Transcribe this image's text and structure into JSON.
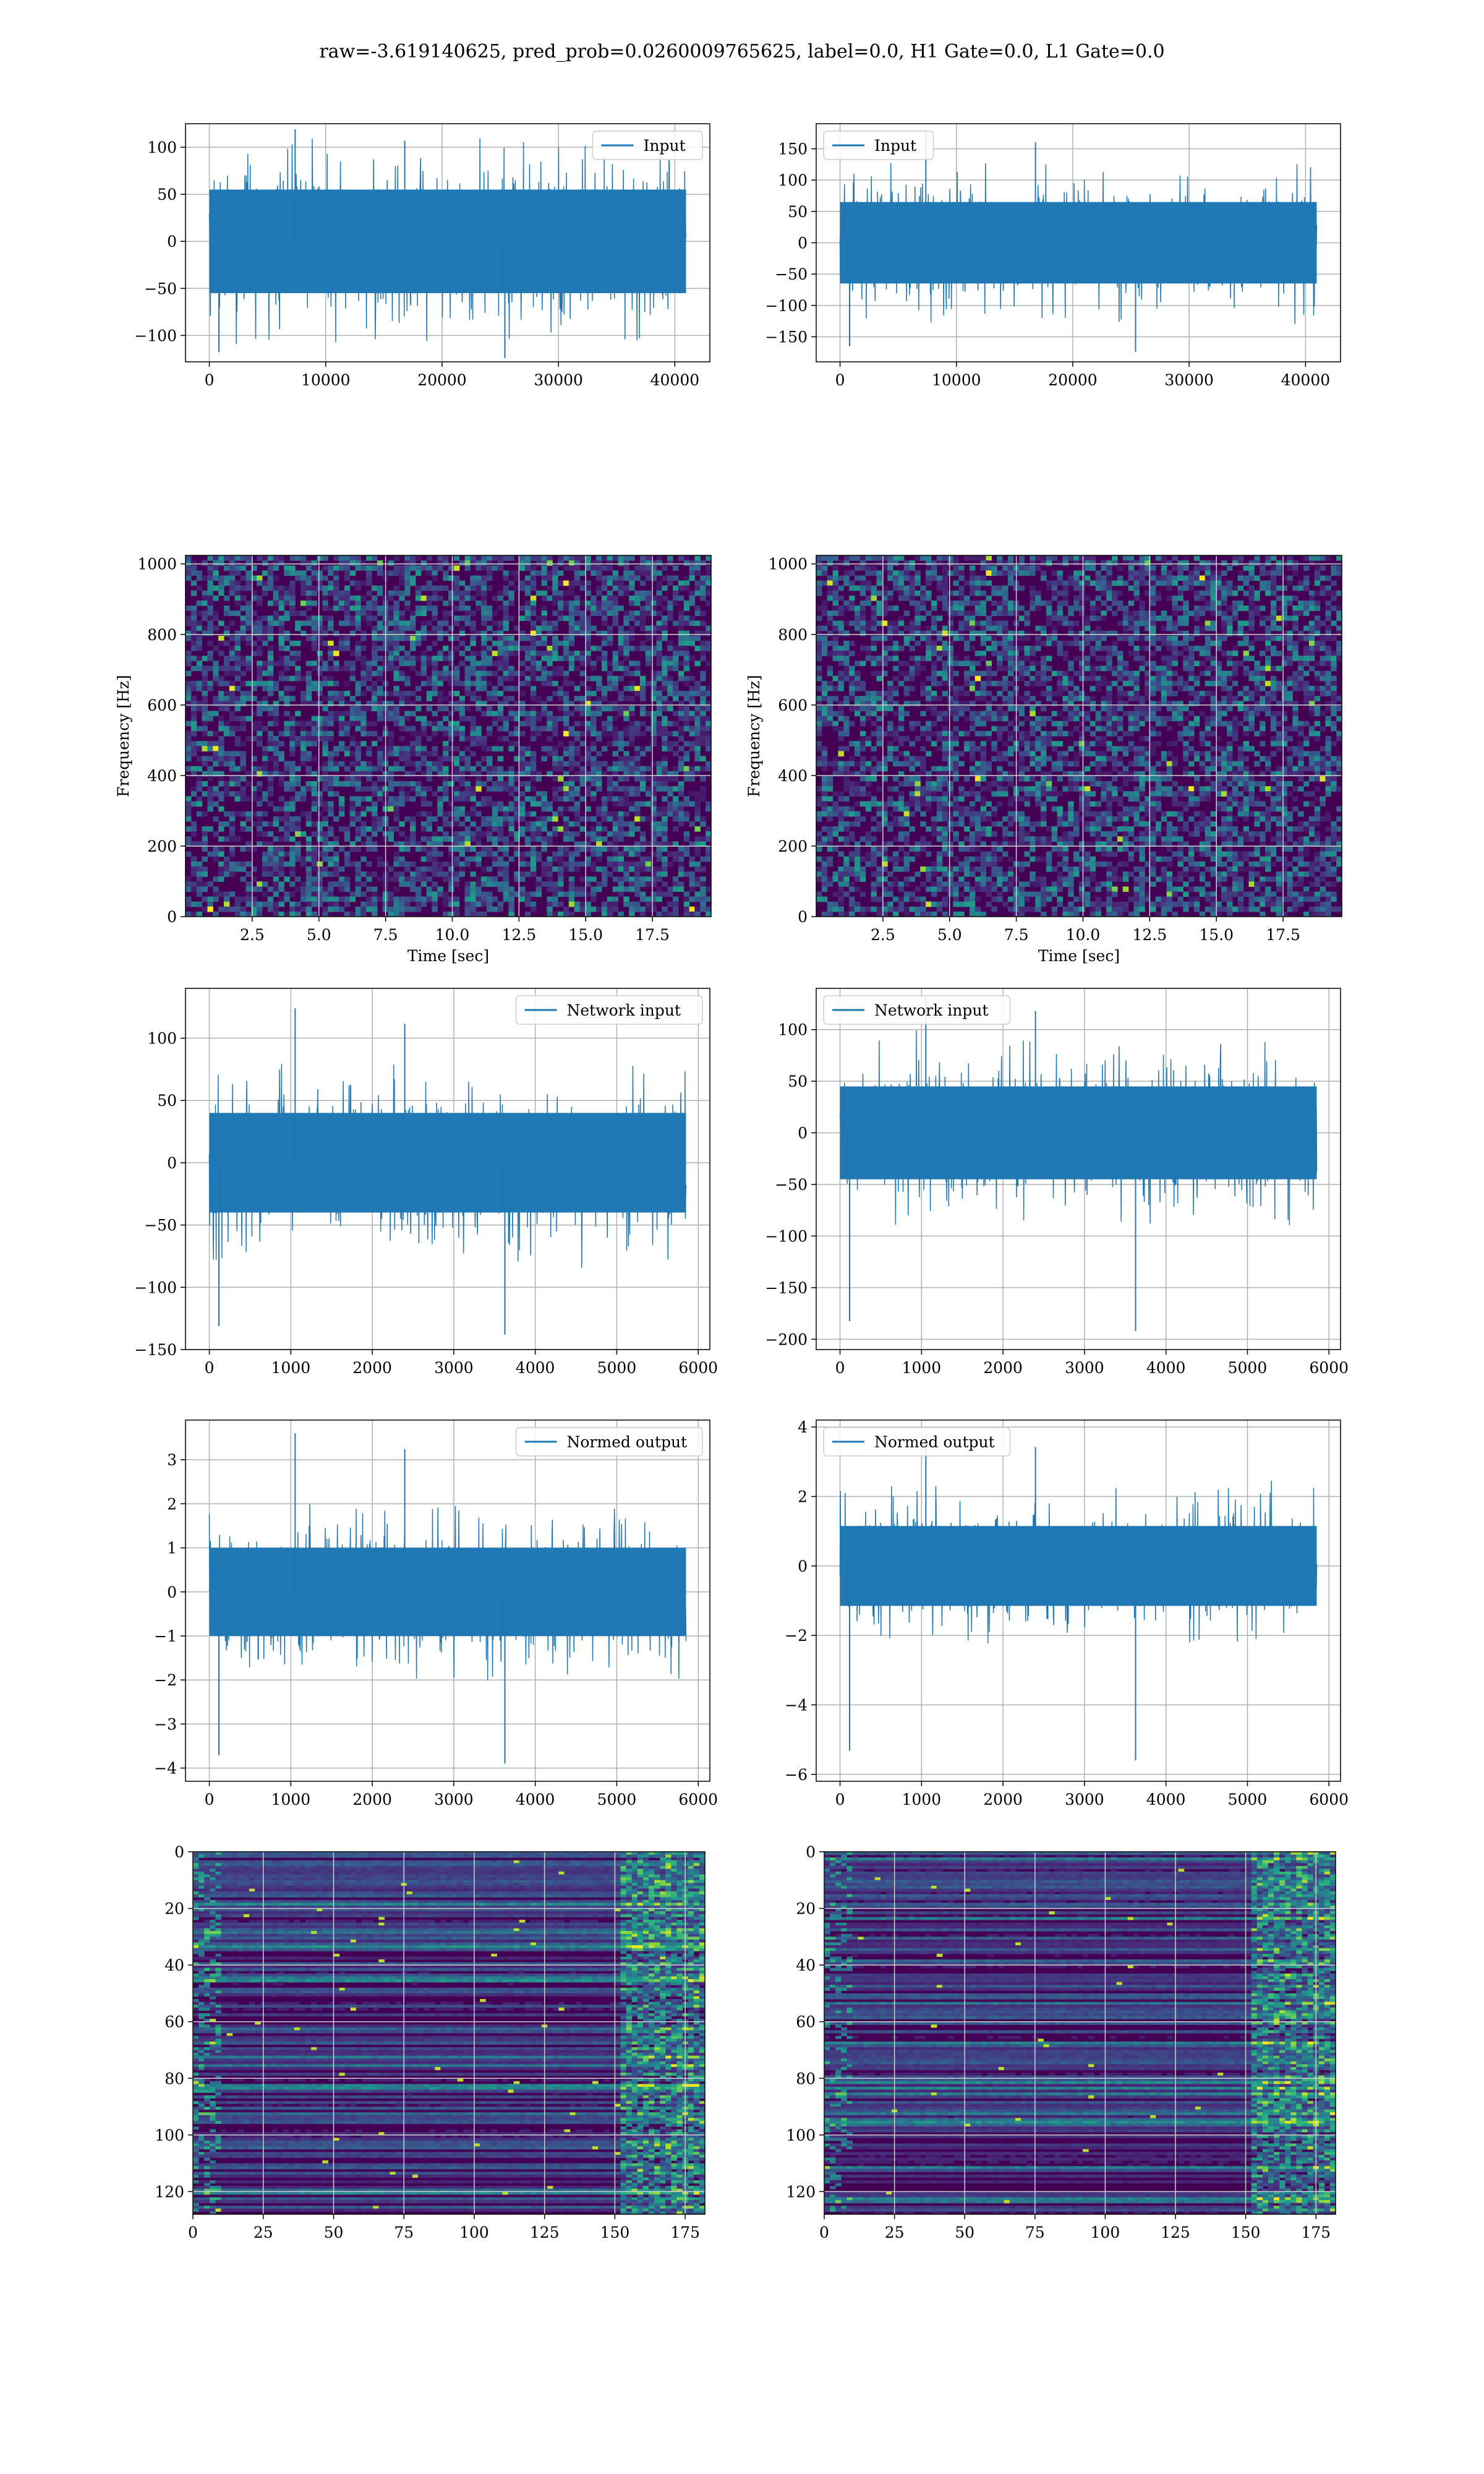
{
  "figure": {
    "title": "raw=-3.619140625, pred_prob=0.0260009765625, label=0.0, H1 Gate=0.0, L1 Gate=0.0"
  },
  "colors": {
    "series": "#1f77b4",
    "grid": "#b0b0b0",
    "heat_low": "#440154",
    "heat_high": "#fde725"
  },
  "chart_data": [
    {
      "id": "h1-input",
      "type": "line",
      "legend": "Input",
      "legend_loc": "upper right",
      "x_range": [
        0,
        40960
      ],
      "xticks": [
        0,
        10000,
        20000,
        30000,
        40000
      ],
      "yticks": [
        -100,
        -50,
        0,
        50,
        100
      ],
      "ylim": [
        -128,
        125
      ],
      "xlabel": "",
      "ylabel": "",
      "envelope": 55,
      "peak_min": -124,
      "peak_max": 119,
      "grid": true
    },
    {
      "id": "l1-input",
      "type": "line",
      "legend": "Input",
      "legend_loc": "upper left",
      "x_range": [
        0,
        40960
      ],
      "xticks": [
        0,
        10000,
        20000,
        30000,
        40000
      ],
      "yticks": [
        -150,
        -100,
        -50,
        0,
        50,
        100,
        150
      ],
      "ylim": [
        -190,
        190
      ],
      "xlabel": "",
      "ylabel": "",
      "envelope": 65,
      "peak_min": -174,
      "peak_max": 178,
      "grid": true
    },
    {
      "id": "h1-spectrogram",
      "type": "heatmap",
      "colormap": "viridis",
      "xlim": [
        0,
        19.7
      ],
      "ylim": [
        0,
        1024
      ],
      "xticks": [
        "2.5",
        "5.0",
        "7.5",
        "10.0",
        "12.5",
        "15.0",
        "17.5"
      ],
      "yticks": [
        0,
        200,
        400,
        600,
        800,
        1000
      ],
      "xlabel": "Time [sec]",
      "ylabel": "Frequency [Hz]",
      "grid": true
    },
    {
      "id": "l1-spectrogram",
      "type": "heatmap",
      "colormap": "viridis",
      "xlim": [
        0,
        19.7
      ],
      "ylim": [
        0,
        1024
      ],
      "xticks": [
        "2.5",
        "5.0",
        "7.5",
        "10.0",
        "12.5",
        "15.0",
        "17.5"
      ],
      "yticks": [
        0,
        200,
        400,
        600,
        800,
        1000
      ],
      "xlabel": "Time [sec]",
      "ylabel": "Frequency [Hz]",
      "grid": true
    },
    {
      "id": "h1-network-input",
      "type": "line",
      "legend": "Network input",
      "legend_loc": "upper right",
      "x_range": [
        0,
        5850
      ],
      "xticks": [
        0,
        1000,
        2000,
        3000,
        4000,
        5000,
        6000
      ],
      "yticks": [
        -150,
        -100,
        -50,
        0,
        50,
        100
      ],
      "ylim": [
        -150,
        140
      ],
      "xlabel": "",
      "ylabel": "",
      "envelope": 40,
      "peak_min": -138,
      "peak_max": 124,
      "grid": true
    },
    {
      "id": "l1-network-input",
      "type": "line",
      "legend": "Network input",
      "legend_loc": "upper left",
      "x_range": [
        0,
        5850
      ],
      "xticks": [
        0,
        1000,
        2000,
        3000,
        4000,
        5000,
        6000
      ],
      "yticks": [
        -200,
        -150,
        -100,
        -50,
        0,
        50,
        100
      ],
      "ylim": [
        -210,
        140
      ],
      "xlabel": "",
      "ylabel": "",
      "envelope": 45,
      "peak_min": -192,
      "peak_max": 131,
      "grid": true
    },
    {
      "id": "h1-normed-output",
      "type": "line",
      "legend": "Normed output",
      "legend_loc": "upper right",
      "x_range": [
        0,
        5850
      ],
      "xticks": [
        0,
        1000,
        2000,
        3000,
        4000,
        5000,
        6000
      ],
      "yticks": [
        -4,
        -3,
        -2,
        -1,
        0,
        1,
        2,
        3
      ],
      "ylim": [
        -4.3,
        3.9
      ],
      "xlabel": "",
      "ylabel": "",
      "envelope": 1.0,
      "peak_min": -3.9,
      "peak_max": 3.6,
      "grid": true
    },
    {
      "id": "l1-normed-output",
      "type": "line",
      "legend": "Normed output",
      "legend_loc": "upper left",
      "x_range": [
        0,
        5850
      ],
      "xticks": [
        0,
        1000,
        2000,
        3000,
        4000,
        5000,
        6000
      ],
      "yticks": [
        -6,
        -4,
        -2,
        0,
        2,
        4
      ],
      "ylim": [
        -6.2,
        4.2
      ],
      "xlabel": "",
      "ylabel": "",
      "envelope": 1.15,
      "peak_min": -5.6,
      "peak_max": 3.8,
      "grid": true
    },
    {
      "id": "h1-output-map",
      "type": "heatmap",
      "colormap": "viridis",
      "xlim": [
        0,
        182
      ],
      "ylim": [
        128,
        0
      ],
      "xticks": [
        0,
        25,
        50,
        75,
        100,
        125,
        150,
        175
      ],
      "yticks": [
        0,
        20,
        40,
        60,
        80,
        100,
        120
      ],
      "xlabel": "",
      "ylabel": "",
      "grid": true
    },
    {
      "id": "l1-output-map",
      "type": "heatmap",
      "colormap": "viridis",
      "xlim": [
        0,
        182
      ],
      "ylim": [
        128,
        0
      ],
      "xticks": [
        0,
        25,
        50,
        75,
        100,
        125,
        150,
        175
      ],
      "yticks": [
        0,
        20,
        40,
        60,
        80,
        100,
        120
      ],
      "xlabel": "",
      "ylabel": "",
      "grid": true
    }
  ]
}
